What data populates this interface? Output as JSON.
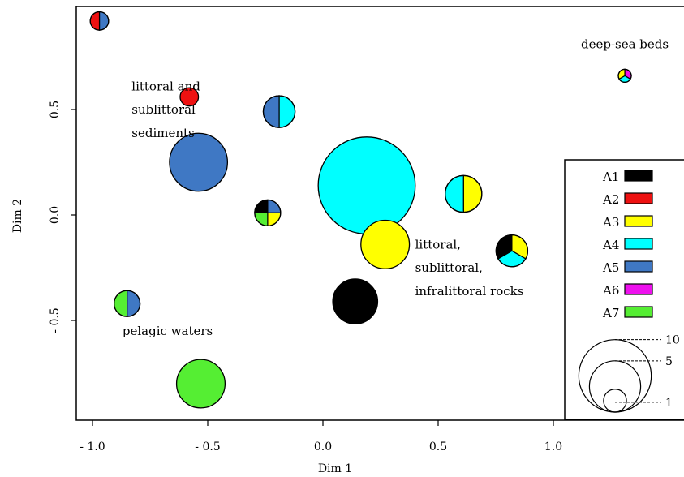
{
  "chart_data": {
    "type": "scatter",
    "subtype": "bubble-pie",
    "title": "",
    "xlabel": "Dim 1",
    "ylabel": "Dim 2",
    "xlim": [
      -1.05,
      1.55
    ],
    "ylim": [
      -0.98,
      0.98
    ],
    "x_ticks": [
      {
        "value": -1.0,
        "label": "- 1.0"
      },
      {
        "value": -0.5,
        "label": "- 0.5"
      },
      {
        "value": 0.0,
        "label": "0.0"
      },
      {
        "value": 0.5,
        "label": "0.5"
      },
      {
        "value": 1.0,
        "label": "1.0"
      }
    ],
    "y_ticks": [
      {
        "value": -0.5,
        "label": "- 0.5"
      },
      {
        "value": 0.0,
        "label": "0.0"
      },
      {
        "value": 0.5,
        "label": "0.5"
      }
    ],
    "categories": [
      {
        "name": "A1",
        "color": "#000000"
      },
      {
        "name": "A2",
        "color": "#ee1111"
      },
      {
        "name": "A3",
        "color": "#ffff00"
      },
      {
        "name": "A4",
        "color": "#00ffff"
      },
      {
        "name": "A5",
        "color": "#3f78c4"
      },
      {
        "name": "A6",
        "color": "#ee11ee"
      },
      {
        "name": "A7",
        "color": "#55ee33"
      }
    ],
    "points": [
      {
        "x": -0.97,
        "y": 0.92,
        "size": 1,
        "pie": [
          {
            "cat": "A5",
            "share": 0.5
          },
          {
            "cat": "A2",
            "share": 0.5
          }
        ]
      },
      {
        "x": -0.58,
        "y": 0.56,
        "size": 1,
        "pie": [
          {
            "cat": "A2",
            "share": 1
          }
        ]
      },
      {
        "x": -0.19,
        "y": 0.49,
        "size": 3,
        "pie": [
          {
            "cat": "A4",
            "share": 0.5
          },
          {
            "cat": "A5",
            "share": 0.5
          }
        ]
      },
      {
        "x": -0.54,
        "y": 0.25,
        "size": 10,
        "pie": [
          {
            "cat": "A5",
            "share": 1
          }
        ]
      },
      {
        "x": -0.24,
        "y": 0.01,
        "size": 2,
        "pie": [
          {
            "cat": "A5",
            "share": 0.25
          },
          {
            "cat": "A3",
            "share": 0.25
          },
          {
            "cat": "A7",
            "share": 0.25
          },
          {
            "cat": "A1",
            "share": 0.25
          }
        ]
      },
      {
        "x": 0.19,
        "y": 0.14,
        "size": 28,
        "pie": [
          {
            "cat": "A4",
            "share": 1
          }
        ]
      },
      {
        "x": 0.61,
        "y": 0.1,
        "size": 4,
        "pie": [
          {
            "cat": "A3",
            "share": 0.5
          },
          {
            "cat": "A4",
            "share": 0.5
          }
        ]
      },
      {
        "x": 0.27,
        "y": -0.14,
        "size": 7,
        "pie": [
          {
            "cat": "A3",
            "share": 1
          }
        ]
      },
      {
        "x": 0.82,
        "y": -0.17,
        "size": 3,
        "pie": [
          {
            "cat": "A3",
            "share": 0.333
          },
          {
            "cat": "A4",
            "share": 0.334
          },
          {
            "cat": "A1",
            "share": 0.333
          }
        ]
      },
      {
        "x": 0.14,
        "y": -0.41,
        "size": 6,
        "pie": [
          {
            "cat": "A1",
            "share": 1
          }
        ]
      },
      {
        "x": -0.85,
        "y": -0.42,
        "size": 2,
        "pie": [
          {
            "cat": "A5",
            "share": 0.5
          },
          {
            "cat": "A7",
            "share": 0.5
          }
        ]
      },
      {
        "x": -0.53,
        "y": -0.8,
        "size": 7,
        "pie": [
          {
            "cat": "A7",
            "share": 1
          }
        ]
      },
      {
        "x": 1.31,
        "y": 0.66,
        "size": 0.5,
        "pie": [
          {
            "cat": "A6",
            "share": 0.334
          },
          {
            "cat": "A4",
            "share": 0.333
          },
          {
            "cat": "A3",
            "share": 0.333
          }
        ]
      }
    ],
    "annotations": [
      {
        "text": "deep-sea beds",
        "x": 1.31,
        "y": 0.79
      },
      {
        "text": "littoral and",
        "x": -0.83,
        "y": 0.59
      },
      {
        "text": "sublittoral",
        "x": -0.83,
        "y": 0.48
      },
      {
        "text": "sediments",
        "x": -0.83,
        "y": 0.37
      },
      {
        "text": "littoral,",
        "x": 0.4,
        "y": -0.16
      },
      {
        "text": "sublittoral,",
        "x": 0.4,
        "y": -0.27
      },
      {
        "text": "infralittoral rocks",
        "x": 0.4,
        "y": -0.38
      },
      {
        "text": "pelagic waters",
        "x": -0.87,
        "y": -0.57
      }
    ],
    "size_legend": [
      {
        "value": 10,
        "label": "10"
      },
      {
        "value": 5,
        "label": "5"
      },
      {
        "value": 1,
        "label": "1"
      }
    ],
    "legend_placement": "right",
    "grid": false
  }
}
